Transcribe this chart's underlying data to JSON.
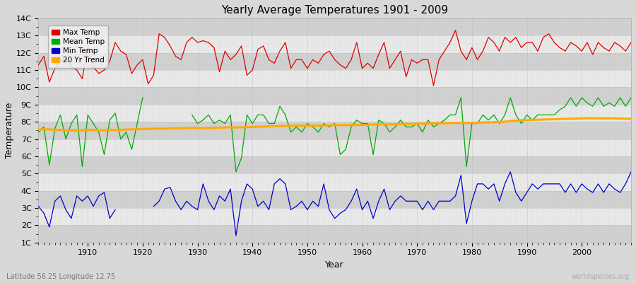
{
  "title": "Yearly Average Temperatures 1901 - 2009",
  "xlabel": "Year",
  "ylabel": "Temperature",
  "lat_lon_label": "Latitude 56.25 Longitude 12.75",
  "watermark": "worldspecies.org",
  "start_year": 1901,
  "end_year": 2009,
  "yticks": [
    1,
    2,
    3,
    4,
    5,
    6,
    7,
    8,
    9,
    10,
    11,
    12,
    13,
    14
  ],
  "ytick_labels": [
    "1C",
    "2C",
    "3C",
    "4C",
    "5C",
    "6C",
    "7C",
    "8C",
    "9C",
    "10C",
    "11C",
    "12C",
    "13C",
    "14C"
  ],
  "colors": {
    "max": "#dd0000",
    "mean": "#00aa00",
    "min": "#0000cc",
    "trend": "#ffaa00",
    "fig_bg": "#d8d8d8",
    "plot_bg": "#e8e8e8",
    "band_dark": "#d0d0d0",
    "band_light": "#e8e8e8"
  },
  "legend": {
    "max": "Max Temp",
    "mean": "Mean Temp",
    "min": "Min Temp",
    "trend": "20 Yr Trend"
  },
  "max_temps": [
    11.3,
    11.8,
    10.3,
    11.1,
    11.5,
    11.7,
    11.2,
    11.0,
    10.5,
    12.3,
    11.2,
    10.8,
    11.0,
    11.5,
    12.6,
    12.1,
    11.9,
    10.8,
    11.3,
    11.6,
    10.2,
    10.7,
    13.1,
    12.9,
    12.4,
    11.8,
    11.6,
    12.6,
    12.9,
    12.6,
    12.7,
    12.6,
    12.3,
    10.9,
    12.1,
    11.6,
    11.9,
    12.4,
    10.7,
    11.0,
    12.2,
    12.4,
    11.6,
    11.4,
    12.1,
    12.6,
    11.1,
    11.6,
    11.6,
    11.1,
    11.6,
    11.4,
    11.9,
    12.1,
    11.6,
    11.3,
    11.1,
    11.6,
    12.6,
    11.1,
    11.4,
    11.1,
    11.9,
    12.6,
    11.1,
    11.6,
    12.1,
    10.6,
    11.6,
    11.4,
    11.6,
    11.6,
    10.1,
    11.6,
    12.1,
    12.6,
    13.3,
    12.1,
    11.6,
    12.3,
    11.6,
    12.1,
    12.9,
    12.6,
    12.1,
    12.9,
    12.6,
    12.9,
    12.3,
    12.6,
    12.6,
    12.1,
    12.9,
    13.1,
    12.6,
    12.3,
    12.1,
    12.6,
    12.4,
    12.1,
    12.6,
    11.9,
    12.6,
    12.3,
    12.1,
    12.6,
    12.4,
    12.1,
    12.6
  ],
  "mean_temps": [
    7.4,
    7.7,
    5.5,
    7.6,
    8.4,
    7.0,
    7.9,
    8.4,
    5.4,
    8.4,
    7.9,
    7.4,
    6.1,
    8.1,
    8.5,
    7.0,
    7.4,
    6.4,
    7.9,
    9.4,
    null,
    null,
    null,
    null,
    null,
    null,
    null,
    null,
    8.4,
    7.9,
    8.1,
    8.4,
    7.9,
    8.1,
    7.9,
    8.4,
    5.1,
    5.9,
    8.4,
    7.9,
    8.4,
    8.4,
    7.9,
    7.9,
    8.9,
    8.4,
    7.4,
    7.7,
    7.4,
    7.9,
    7.7,
    7.4,
    7.9,
    7.7,
    7.9,
    6.1,
    6.4,
    7.7,
    8.1,
    7.9,
    7.9,
    6.1,
    8.1,
    7.9,
    7.4,
    7.7,
    8.1,
    7.7,
    7.7,
    7.9,
    7.4,
    8.1,
    7.7,
    7.9,
    8.1,
    8.4,
    8.4,
    9.4,
    5.4,
    7.9,
    7.9,
    8.4,
    8.1,
    8.4,
    7.9,
    8.4,
    9.4,
    8.4,
    7.9,
    8.4,
    8.1,
    8.4,
    8.4,
    8.4,
    8.4,
    8.7,
    8.9,
    9.4,
    8.9,
    9.4,
    9.1,
    8.9,
    9.4,
    8.9,
    9.1,
    8.9,
    9.4,
    8.9,
    9.4
  ],
  "min_temps": [
    3.1,
    2.7,
    1.9,
    3.4,
    3.7,
    2.9,
    2.4,
    3.7,
    3.4,
    3.7,
    3.1,
    3.7,
    3.9,
    2.4,
    2.9,
    null,
    null,
    null,
    null,
    null,
    null,
    3.1,
    3.4,
    4.1,
    4.2,
    3.4,
    2.9,
    3.4,
    3.1,
    2.9,
    4.4,
    3.4,
    2.9,
    3.7,
    3.4,
    4.1,
    1.4,
    3.4,
    4.4,
    4.1,
    3.1,
    3.4,
    2.9,
    4.4,
    4.7,
    4.4,
    2.9,
    3.1,
    3.4,
    2.9,
    3.4,
    3.1,
    4.4,
    2.9,
    2.4,
    2.7,
    2.9,
    3.4,
    4.1,
    2.9,
    3.4,
    2.4,
    3.4,
    4.1,
    2.9,
    3.4,
    3.7,
    3.4,
    3.4,
    3.4,
    2.9,
    3.4,
    2.9,
    3.4,
    3.4,
    3.4,
    3.7,
    4.9,
    2.1,
    3.4,
    4.4,
    4.4,
    4.1,
    4.4,
    3.4,
    4.4,
    5.1,
    3.9,
    3.4,
    3.9,
    4.4,
    4.1,
    4.4,
    4.4,
    4.4,
    4.4,
    3.9,
    4.4,
    3.9,
    4.4,
    4.1,
    3.9,
    4.4,
    3.9,
    4.4,
    4.1,
    3.9,
    4.4,
    5.1
  ],
  "trend_temps": [
    7.55,
    7.57,
    7.56,
    7.54,
    7.53,
    7.52,
    7.51,
    7.5,
    7.51,
    7.52,
    7.53,
    7.52,
    7.51,
    7.52,
    7.53,
    7.54,
    7.55,
    7.56,
    7.57,
    7.58,
    7.59,
    7.6,
    7.61,
    7.6,
    7.61,
    7.62,
    7.63,
    7.64,
    7.65,
    7.64,
    7.63,
    7.64,
    7.65,
    7.66,
    7.67,
    7.68,
    7.67,
    7.68,
    7.69,
    7.7,
    7.71,
    7.72,
    7.73,
    7.74,
    7.75,
    7.76,
    7.77,
    7.78,
    7.77,
    7.78,
    7.77,
    7.78,
    7.79,
    7.8,
    7.81,
    7.8,
    7.81,
    7.8,
    7.81,
    7.82,
    7.83,
    7.84,
    7.85,
    7.86,
    7.85,
    7.86,
    7.87,
    7.88,
    7.87,
    7.88,
    7.89,
    7.9,
    7.91,
    7.92,
    7.91,
    7.92,
    7.93,
    7.94,
    7.93,
    7.94,
    7.95,
    7.96,
    7.97,
    7.98,
    7.99,
    8.0,
    8.05,
    8.07,
    8.09,
    8.1,
    8.11,
    8.12,
    8.13,
    8.14,
    8.15,
    8.16,
    8.17,
    8.18,
    8.19,
    8.2,
    8.21,
    8.2,
    8.21,
    8.2,
    8.21,
    8.2,
    8.19,
    8.18,
    8.17
  ]
}
